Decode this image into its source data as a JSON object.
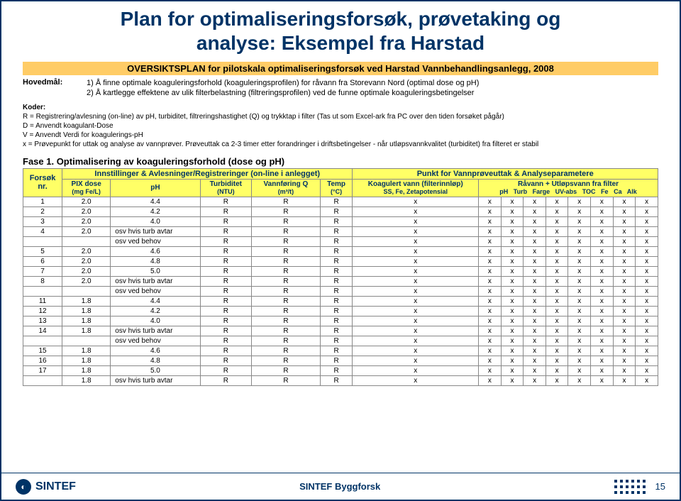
{
  "title_line1": "Plan for optimaliseringsforsøk, prøvetaking og",
  "title_line2": "analyse: Eksempel fra Harstad",
  "overskrift": "OVERSIKTSPLAN for pilotskala optimaliseringsforsøk ved Harstad Vannbehandlingsanlegg, 2008",
  "hovedmal_label": "Hovedmål:",
  "hovedmal_1": "1) Å finne optimale koaguleringsforhold (koaguleringsprofilen) for råvann fra Storevann Nord (optimal dose og pH)",
  "hovedmal_2": "2) Å kartlegge effektene av ulik filterbelastning (filtreringsprofilen) ved de funne optimale koaguleringsbetingelser",
  "koder_header": "Koder:",
  "koder_lines": [
    "R = Registrering/avlesning (on-line) av pH, turbiditet, filtreringshastighet (Q) og trykktap i filter (Tas ut som Excel-ark fra PC over den tiden forsøket pågår)",
    "D = Anvendt koagulant-Dose",
    "V = Anvendt Verdi for koagulerings-pH",
    "x = Prøvepunkt for uttak og analyse av vannprøver. Prøveuttak ca 2-3 timer etter forandringer i driftsbetingelser - når utløpsvannkvalitet (turbiditet) fra filteret er stabil"
  ],
  "fase": "Fase 1. Optimalisering av koaguleringsforhold (dose og pH)",
  "headers": {
    "forsok": "Forsøk",
    "nr": "nr.",
    "innst": "Innstillinger & Avlesninger/Registreringer (on-line i anlegget)",
    "pix": "PIX dose",
    "pix_unit": "(mg Fe/L)",
    "ph": "pH",
    "turb": "Turbiditet",
    "turb_unit": "(NTU)",
    "vann": "Vannføring Q",
    "vann_unit": "(m³/t)",
    "temp": "Temp",
    "temp_unit": "(°C)",
    "punkt": "Punkt for Vannprøveuttak & Analyseparametere",
    "koag": "Koagulert vann (filterinnløp)",
    "koag_sub": "SS, Fe, Zetapotensial",
    "ravann": "Råvann + Utløpsvann fra filter",
    "p_ph": "pH",
    "p_turb": "Turb",
    "p_farge": "Farge",
    "p_uv": "UV-abs",
    "p_toc": "TOC",
    "p_fe": "Fe",
    "p_ca": "Ca",
    "p_alk": "Alk"
  },
  "rows": [
    {
      "nr": "1",
      "pix": "2.0",
      "ph": "4.4"
    },
    {
      "nr": "2",
      "pix": "2.0",
      "ph": "4.2"
    },
    {
      "nr": "3",
      "pix": "2.0",
      "ph": "4.0"
    },
    {
      "nr": "4",
      "pix": "2.0",
      "ph": "osv hvis turb avtar"
    },
    {
      "nr": "",
      "pix": "",
      "ph": "osv ved behov"
    },
    {
      "nr": "5",
      "pix": "2.0",
      "ph": "4.6"
    },
    {
      "nr": "6",
      "pix": "2.0",
      "ph": "4.8"
    },
    {
      "nr": "7",
      "pix": "2.0",
      "ph": "5.0"
    },
    {
      "nr": "8",
      "pix": "2.0",
      "ph": "osv hvis turb avtar"
    },
    {
      "nr": "",
      "pix": "",
      "ph": "osv ved behov"
    },
    {
      "nr": "11",
      "pix": "1.8",
      "ph": "4.4"
    },
    {
      "nr": "12",
      "pix": "1.8",
      "ph": "4.2"
    },
    {
      "nr": "13",
      "pix": "1.8",
      "ph": "4.0"
    },
    {
      "nr": "14",
      "pix": "1.8",
      "ph": "osv hvis turb avtar"
    },
    {
      "nr": "",
      "pix": "",
      "ph": "osv ved behov"
    },
    {
      "nr": "15",
      "pix": "1.8",
      "ph": "4.6"
    },
    {
      "nr": "16",
      "pix": "1.8",
      "ph": "4.8"
    },
    {
      "nr": "17",
      "pix": "1.8",
      "ph": "5.0"
    },
    {
      "nr": "",
      "pix": "1.8",
      "ph": "osv hvis turb avtar"
    }
  ],
  "cell_R": "R",
  "cell_x": "x",
  "footer": {
    "brand": "SINTEF",
    "center": "SINTEF Byggforsk",
    "page": "15"
  },
  "colors": {
    "brand": "#003366",
    "header_bg": "#ffff66",
    "overskrift_bg": "#ffcc66"
  }
}
